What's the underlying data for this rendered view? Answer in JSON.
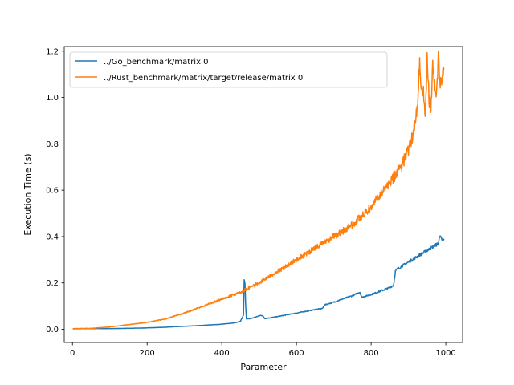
{
  "chart_data": {
    "type": "line",
    "title": "",
    "xlabel": "Parameter",
    "ylabel": "Execution Time (s)",
    "xlim": [
      -22,
      1045
    ],
    "ylim": [
      -0.057,
      1.22
    ],
    "xticks": [
      0,
      200,
      400,
      600,
      800,
      1000
    ],
    "yticks": [
      0.0,
      0.2,
      0.4,
      0.6,
      0.8,
      1.0,
      1.2
    ],
    "ytick_labels": [
      "0.0",
      "0.2",
      "0.4",
      "0.6",
      "0.8",
      "1.0",
      "1.2"
    ],
    "grid": false,
    "legend_position": "top-left",
    "series": [
      {
        "name": "../Go_benchmark/matrix 0",
        "color": "#1f77b4",
        "x": [
          1,
          50,
          100,
          150,
          200,
          250,
          300,
          350,
          400,
          430,
          440,
          450,
          458,
          460,
          462,
          464,
          466,
          470,
          480,
          500,
          505,
          510,
          515,
          520,
          550,
          600,
          650,
          670,
          675,
          700,
          750,
          770,
          775,
          800,
          850,
          860,
          865,
          870,
          900,
          950,
          980,
          985,
          990,
          995
        ],
        "y": [
          0.002,
          0.003,
          0.003,
          0.004,
          0.006,
          0.009,
          0.013,
          0.017,
          0.022,
          0.027,
          0.03,
          0.035,
          0.06,
          0.21,
          0.2,
          0.1,
          0.045,
          0.045,
          0.047,
          0.058,
          0.06,
          0.058,
          0.046,
          0.047,
          0.055,
          0.07,
          0.085,
          0.09,
          0.105,
          0.117,
          0.145,
          0.16,
          0.138,
          0.15,
          0.18,
          0.19,
          0.25,
          0.26,
          0.29,
          0.34,
          0.37,
          0.41,
          0.38,
          0.39
        ]
      },
      {
        "name": "../Rust_benchmark/matrix/target/release/matrix 0",
        "color": "#ff7f0e",
        "x": [
          1,
          50,
          100,
          150,
          200,
          250,
          300,
          350,
          400,
          450,
          500,
          550,
          600,
          650,
          700,
          750,
          800,
          850,
          880,
          900,
          910,
          920,
          925,
          930,
          935,
          940,
          945,
          950,
          955,
          960,
          965,
          970,
          975,
          980,
          985,
          990,
          995
        ],
        "y": [
          0.003,
          0.004,
          0.01,
          0.02,
          0.03,
          0.045,
          0.07,
          0.1,
          0.13,
          0.16,
          0.2,
          0.25,
          0.3,
          0.35,
          0.4,
          0.45,
          0.53,
          0.63,
          0.7,
          0.77,
          0.83,
          0.9,
          1.0,
          1.15,
          1.02,
          1.05,
          0.9,
          1.17,
          1.0,
          0.95,
          1.15,
          1.05,
          1.0,
          1.17,
          1.05,
          1.1,
          1.12
        ]
      }
    ]
  }
}
